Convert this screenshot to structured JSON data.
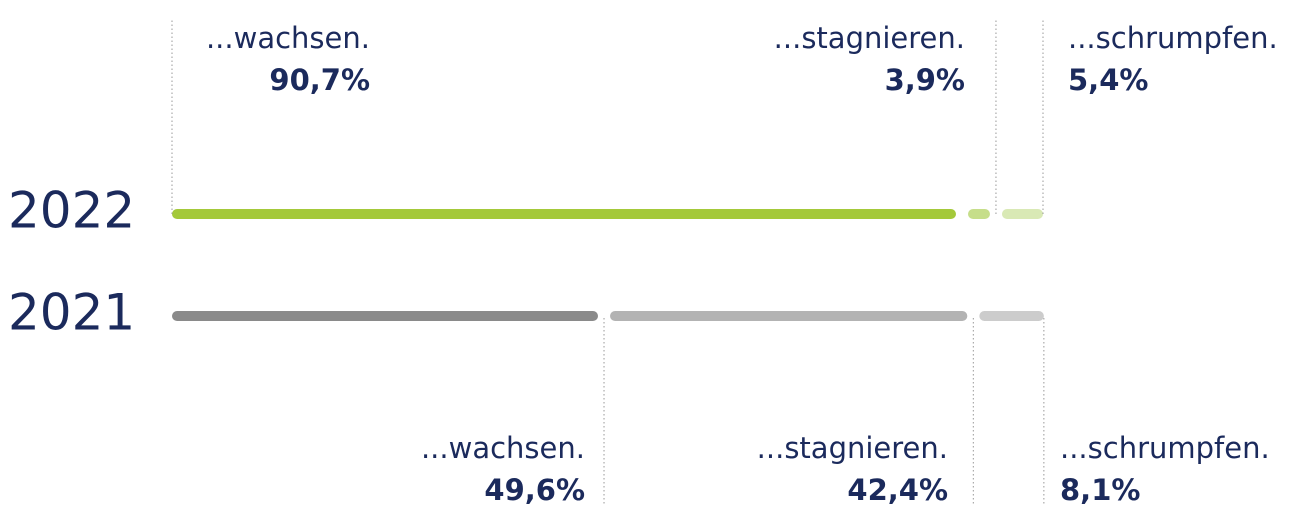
{
  "chart_data": {
    "type": "stacked-bar-horizontal",
    "categories": [
      "2022",
      "2021"
    ],
    "xlim": [
      0,
      100
    ],
    "series": [
      {
        "name": "...wachsen.",
        "colors": [
          "#a4c93a",
          "#8a8a8a"
        ],
        "values": [
          90.7,
          49.6
        ],
        "value_labels": [
          "90,7%",
          "49,6%"
        ]
      },
      {
        "name": "...stagnieren.",
        "colors": [
          "#c6de8a",
          "#b3b3b3"
        ],
        "values": [
          3.9,
          42.4
        ],
        "value_labels": [
          "3,9%",
          "42,4%"
        ]
      },
      {
        "name": "...schrumpfen.",
        "colors": [
          "#d9e9b5",
          "#cccccc"
        ],
        "values": [
          5.4,
          8.1
        ],
        "value_labels": [
          "5,4%",
          "8,1%"
        ]
      }
    ]
  }
}
